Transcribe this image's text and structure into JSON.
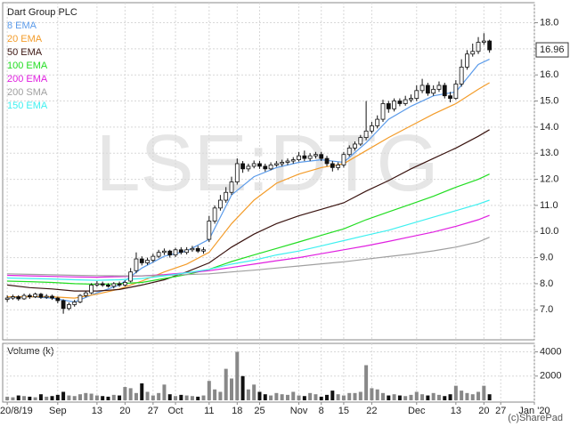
{
  "chart_data": {
    "type": "candlestick",
    "title": "Dart Group PLC",
    "watermark": "LSE:DTG",
    "credit": "(c)SharePad",
    "up_color": "#ffffff",
    "down_color": "#111111",
    "grid": true,
    "xlim": [
      -0.5,
      94
    ],
    "ylim": [
      5.85,
      18.7
    ],
    "xticks": [
      {
        "value": 0,
        "label": "20/8/19"
      },
      {
        "value": 9,
        "label": "Sep"
      },
      {
        "value": 16,
        "label": "13"
      },
      {
        "value": 21,
        "label": "20"
      },
      {
        "value": 26,
        "label": "27"
      },
      {
        "value": 30,
        "label": "Oct"
      },
      {
        "value": 36,
        "label": "11"
      },
      {
        "value": 41,
        "label": "18"
      },
      {
        "value": 45,
        "label": "25"
      },
      {
        "value": 52,
        "label": "Nov"
      },
      {
        "value": 56,
        "label": "8"
      },
      {
        "value": 60,
        "label": "15"
      },
      {
        "value": 65,
        "label": "22"
      },
      {
        "value": 73,
        "label": "Dec"
      },
      {
        "value": 80,
        "label": "13"
      },
      {
        "value": 85,
        "label": "20"
      },
      {
        "value": 88,
        "label": "27"
      },
      {
        "value": 94,
        "label": "Jan '20"
      }
    ],
    "yticks": [
      {
        "value": 7,
        "label": "7.0"
      },
      {
        "value": 8,
        "label": "8.0"
      },
      {
        "value": 9,
        "label": "9.0"
      },
      {
        "value": 10,
        "label": "10.0"
      },
      {
        "value": 11,
        "label": "11.0"
      },
      {
        "value": 12,
        "label": "12.0"
      },
      {
        "value": 13,
        "label": "13.0"
      },
      {
        "value": 14,
        "label": "14.0"
      },
      {
        "value": 15,
        "label": "15.0"
      },
      {
        "value": 16,
        "label": "16.0"
      },
      {
        "value": 17,
        "label": "17.0"
      },
      {
        "value": 18,
        "label": "18.0"
      }
    ],
    "x": [
      0,
      1,
      2,
      3,
      4,
      5,
      6,
      7,
      8,
      9,
      10,
      11,
      12,
      13,
      14,
      15,
      16,
      17,
      18,
      19,
      20,
      21,
      22,
      23,
      24,
      25,
      26,
      27,
      28,
      29,
      30,
      31,
      32,
      33,
      34,
      35,
      36,
      37,
      38,
      39,
      40,
      41,
      42,
      43,
      44,
      45,
      46,
      47,
      48,
      49,
      50,
      51,
      52,
      53,
      54,
      55,
      56,
      57,
      58,
      59,
      60,
      61,
      62,
      63,
      64,
      65,
      66,
      67,
      68,
      69,
      70,
      71,
      72,
      73,
      74,
      75,
      76,
      77,
      78,
      79,
      80,
      81,
      82,
      83,
      84,
      85,
      86
    ],
    "open": [
      7.4,
      7.45,
      7.5,
      7.42,
      7.55,
      7.5,
      7.6,
      7.48,
      7.52,
      7.45,
      7.35,
      7.05,
      7.2,
      7.3,
      7.55,
      7.65,
      7.95,
      8.0,
      7.95,
      7.9,
      8.0,
      7.95,
      8.1,
      8.5,
      8.95,
      8.8,
      8.9,
      9.05,
      9.2,
      9.25,
      9.1,
      9.3,
      9.2,
      9.3,
      9.35,
      9.25,
      9.7,
      10.4,
      10.9,
      11.2,
      11.5,
      11.9,
      12.6,
      12.4,
      12.5,
      12.6,
      12.5,
      12.4,
      12.55,
      12.6,
      12.65,
      12.7,
      12.75,
      12.9,
      12.8,
      12.9,
      12.95,
      12.8,
      12.6,
      12.45,
      12.55,
      12.95,
      13.2,
      13.35,
      13.6,
      13.85,
      14.05,
      14.3,
      14.9,
      14.7,
      15.0,
      14.9,
      15.05,
      15.1,
      15.4,
      15.6,
      15.3,
      15.45,
      15.6,
      15.2,
      15.1,
      15.65,
      16.3,
      16.8,
      16.9,
      17.25,
      17.3
    ],
    "high": [
      7.55,
      7.58,
      7.56,
      7.62,
      7.62,
      7.66,
      7.65,
      7.6,
      7.58,
      7.5,
      7.4,
      7.28,
      7.38,
      7.6,
      7.72,
      8.02,
      8.1,
      8.08,
      8.02,
      8.06,
      8.08,
      8.12,
      8.6,
      9.2,
      9.05,
      9.0,
      9.15,
      9.3,
      9.35,
      9.3,
      9.38,
      9.4,
      9.4,
      9.45,
      9.45,
      9.4,
      10.6,
      11.0,
      11.4,
      11.7,
      12.1,
      12.8,
      12.7,
      12.6,
      12.72,
      12.7,
      12.6,
      12.65,
      12.7,
      12.75,
      12.8,
      12.85,
      13.05,
      13.1,
      13.0,
      13.05,
      13.05,
      12.9,
      12.7,
      12.65,
      13.05,
      13.3,
      13.45,
      13.7,
      15.0,
      14.2,
      14.45,
      15.05,
      15.0,
      15.1,
      15.1,
      15.2,
      15.25,
      15.6,
      15.85,
      15.7,
      15.6,
      15.75,
      15.7,
      15.35,
      15.8,
      16.6,
      16.95,
      17.2,
      17.45,
      17.6,
      17.35
    ],
    "low": [
      7.3,
      7.38,
      7.35,
      7.38,
      7.42,
      7.45,
      7.42,
      7.42,
      7.38,
      7.25,
      6.85,
      6.98,
      7.12,
      7.25,
      7.48,
      7.6,
      7.88,
      7.88,
      7.85,
      7.82,
      7.88,
      7.9,
      8.05,
      8.4,
      8.7,
      8.72,
      8.82,
      8.98,
      9.1,
      9.0,
      9.02,
      9.12,
      9.12,
      9.22,
      9.18,
      9.15,
      9.6,
      10.3,
      10.8,
      11.1,
      11.4,
      11.8,
      12.25,
      12.3,
      12.42,
      12.4,
      12.3,
      12.35,
      12.48,
      12.5,
      12.55,
      12.6,
      12.68,
      12.7,
      12.7,
      12.8,
      12.7,
      12.5,
      12.3,
      12.35,
      12.45,
      12.88,
      13.1,
      13.28,
      13.5,
      13.75,
      13.95,
      14.2,
      14.55,
      14.6,
      14.8,
      14.82,
      14.95,
      15.0,
      15.3,
      15.2,
      15.2,
      15.35,
      15.1,
      14.95,
      15.05,
      15.55,
      16.2,
      16.7,
      16.8,
      17.15,
      16.85
    ],
    "close": [
      7.45,
      7.5,
      7.42,
      7.55,
      7.5,
      7.6,
      7.48,
      7.52,
      7.45,
      7.35,
      7.05,
      7.2,
      7.3,
      7.55,
      7.65,
      7.95,
      8.0,
      7.95,
      7.9,
      8.0,
      7.95,
      8.05,
      8.45,
      8.95,
      8.8,
      8.9,
      9.05,
      9.2,
      9.25,
      9.1,
      9.3,
      9.2,
      9.3,
      9.35,
      9.25,
      9.3,
      10.4,
      10.9,
      11.2,
      11.5,
      11.9,
      12.6,
      12.4,
      12.5,
      12.6,
      12.5,
      12.4,
      12.55,
      12.6,
      12.65,
      12.7,
      12.75,
      12.9,
      12.8,
      12.9,
      12.95,
      12.8,
      12.6,
      12.45,
      12.55,
      12.95,
      13.2,
      13.35,
      13.6,
      13.85,
      14.05,
      14.3,
      14.9,
      14.7,
      15.0,
      14.9,
      15.05,
      15.1,
      15.4,
      15.6,
      15.3,
      15.45,
      15.6,
      15.2,
      15.1,
      15.65,
      16.3,
      16.8,
      16.9,
      17.25,
      17.3,
      16.96
    ],
    "series": [
      {
        "name": "8 EMA",
        "color": "#5b9bea",
        "x": [
          0,
          4,
          8,
          12,
          16,
          20,
          24,
          28,
          32,
          36,
          40,
          44,
          48,
          52,
          56,
          60,
          64,
          68,
          72,
          76,
          80,
          84,
          86
        ],
        "values": [
          7.45,
          7.5,
          7.45,
          7.3,
          7.65,
          7.95,
          8.6,
          9.05,
          9.25,
          9.7,
          11.4,
          12.1,
          12.45,
          12.65,
          12.75,
          12.65,
          13.4,
          14.3,
          14.8,
          15.2,
          15.35,
          16.4,
          16.6
        ]
      },
      {
        "name": "20 EMA",
        "color": "#f39c2a",
        "x": [
          0,
          4,
          8,
          12,
          16,
          20,
          24,
          28,
          32,
          36,
          40,
          44,
          48,
          52,
          56,
          60,
          64,
          68,
          72,
          76,
          80,
          84,
          86
        ],
        "values": [
          7.5,
          7.5,
          7.5,
          7.45,
          7.6,
          7.8,
          8.1,
          8.45,
          8.75,
          9.2,
          10.3,
          11.2,
          11.85,
          12.2,
          12.45,
          12.6,
          13.1,
          13.6,
          14.05,
          14.5,
          14.9,
          15.45,
          15.7
        ]
      },
      {
        "name": "50 EMA",
        "color": "#3a1410",
        "x": [
          0,
          4,
          8,
          12,
          16,
          20,
          24,
          28,
          32,
          36,
          40,
          44,
          48,
          52,
          56,
          60,
          64,
          68,
          72,
          76,
          80,
          84,
          86
        ],
        "values": [
          7.95,
          7.85,
          7.8,
          7.72,
          7.72,
          7.78,
          7.95,
          8.15,
          8.45,
          8.8,
          9.4,
          9.9,
          10.3,
          10.6,
          10.85,
          11.1,
          11.55,
          11.95,
          12.4,
          12.8,
          13.2,
          13.65,
          13.9
        ]
      },
      {
        "name": "100 EMA",
        "color": "#22dd22",
        "x": [
          0,
          4,
          8,
          12,
          16,
          20,
          24,
          28,
          32,
          36,
          40,
          44,
          48,
          52,
          56,
          60,
          64,
          68,
          72,
          76,
          80,
          84,
          86
        ],
        "values": [
          8.1,
          8.08,
          8.05,
          8.0,
          7.98,
          8.0,
          8.05,
          8.2,
          8.35,
          8.55,
          8.85,
          9.1,
          9.35,
          9.6,
          9.85,
          10.1,
          10.45,
          10.75,
          11.05,
          11.35,
          11.7,
          12.0,
          12.2
        ]
      },
      {
        "name": "200 EMA",
        "color": "#e020e0",
        "x": [
          0,
          4,
          8,
          12,
          16,
          20,
          24,
          28,
          32,
          36,
          40,
          44,
          48,
          52,
          56,
          60,
          64,
          68,
          72,
          76,
          80,
          84,
          86
        ],
        "values": [
          8.32,
          8.3,
          8.28,
          8.26,
          8.25,
          8.27,
          8.3,
          8.35,
          8.42,
          8.5,
          8.62,
          8.75,
          8.88,
          9.0,
          9.15,
          9.3,
          9.45,
          9.62,
          9.8,
          9.98,
          10.2,
          10.45,
          10.62
        ]
      },
      {
        "name": "200 SMA",
        "color": "#a0a0a0",
        "x": [
          0,
          4,
          8,
          12,
          16,
          20,
          24,
          28,
          32,
          36,
          40,
          44,
          48,
          52,
          56,
          60,
          64,
          68,
          72,
          76,
          80,
          84,
          86
        ],
        "values": [
          8.38,
          8.36,
          8.34,
          8.32,
          8.31,
          8.3,
          8.3,
          8.32,
          8.35,
          8.38,
          8.45,
          8.52,
          8.6,
          8.68,
          8.76,
          8.84,
          8.94,
          9.04,
          9.14,
          9.26,
          9.4,
          9.6,
          9.78
        ]
      },
      {
        "name": "150 EMA",
        "color": "#3ef0f0",
        "x": [
          0,
          4,
          8,
          12,
          16,
          20,
          24,
          28,
          32,
          36,
          40,
          44,
          48,
          52,
          56,
          60,
          64,
          68,
          72,
          76,
          80,
          84,
          86
        ],
        "values": [
          8.22,
          8.2,
          8.18,
          8.15,
          8.13,
          8.15,
          8.2,
          8.3,
          8.42,
          8.55,
          8.75,
          8.9,
          9.1,
          9.25,
          9.45,
          9.65,
          9.85,
          10.05,
          10.3,
          10.55,
          10.8,
          11.05,
          11.2
        ]
      }
    ],
    "volume": {
      "title": "Volume (k)",
      "ylim": [
        0,
        4700
      ],
      "yticks": [
        2000,
        4000
      ],
      "values": [
        300,
        250,
        400,
        350,
        300,
        250,
        500,
        300,
        350,
        450,
        700,
        400,
        350,
        500,
        600,
        550,
        400,
        350,
        300,
        450,
        400,
        1100,
        1000,
        600,
        1400,
        700,
        400,
        600,
        1300,
        500,
        350,
        450,
        400,
        350,
        300,
        400,
        1600,
        900,
        700,
        2600,
        1800,
        4000,
        2000,
        900,
        1300,
        700,
        500,
        400,
        600,
        500,
        450,
        700,
        400,
        350,
        600,
        500,
        300,
        450,
        800,
        500,
        400,
        600,
        600,
        700,
        2900,
        1000,
        900,
        600,
        400,
        500,
        400,
        350,
        450,
        700,
        500,
        400,
        600,
        450,
        350,
        500,
        1200,
        800,
        600,
        500,
        700,
        1200,
        500
      ]
    }
  }
}
